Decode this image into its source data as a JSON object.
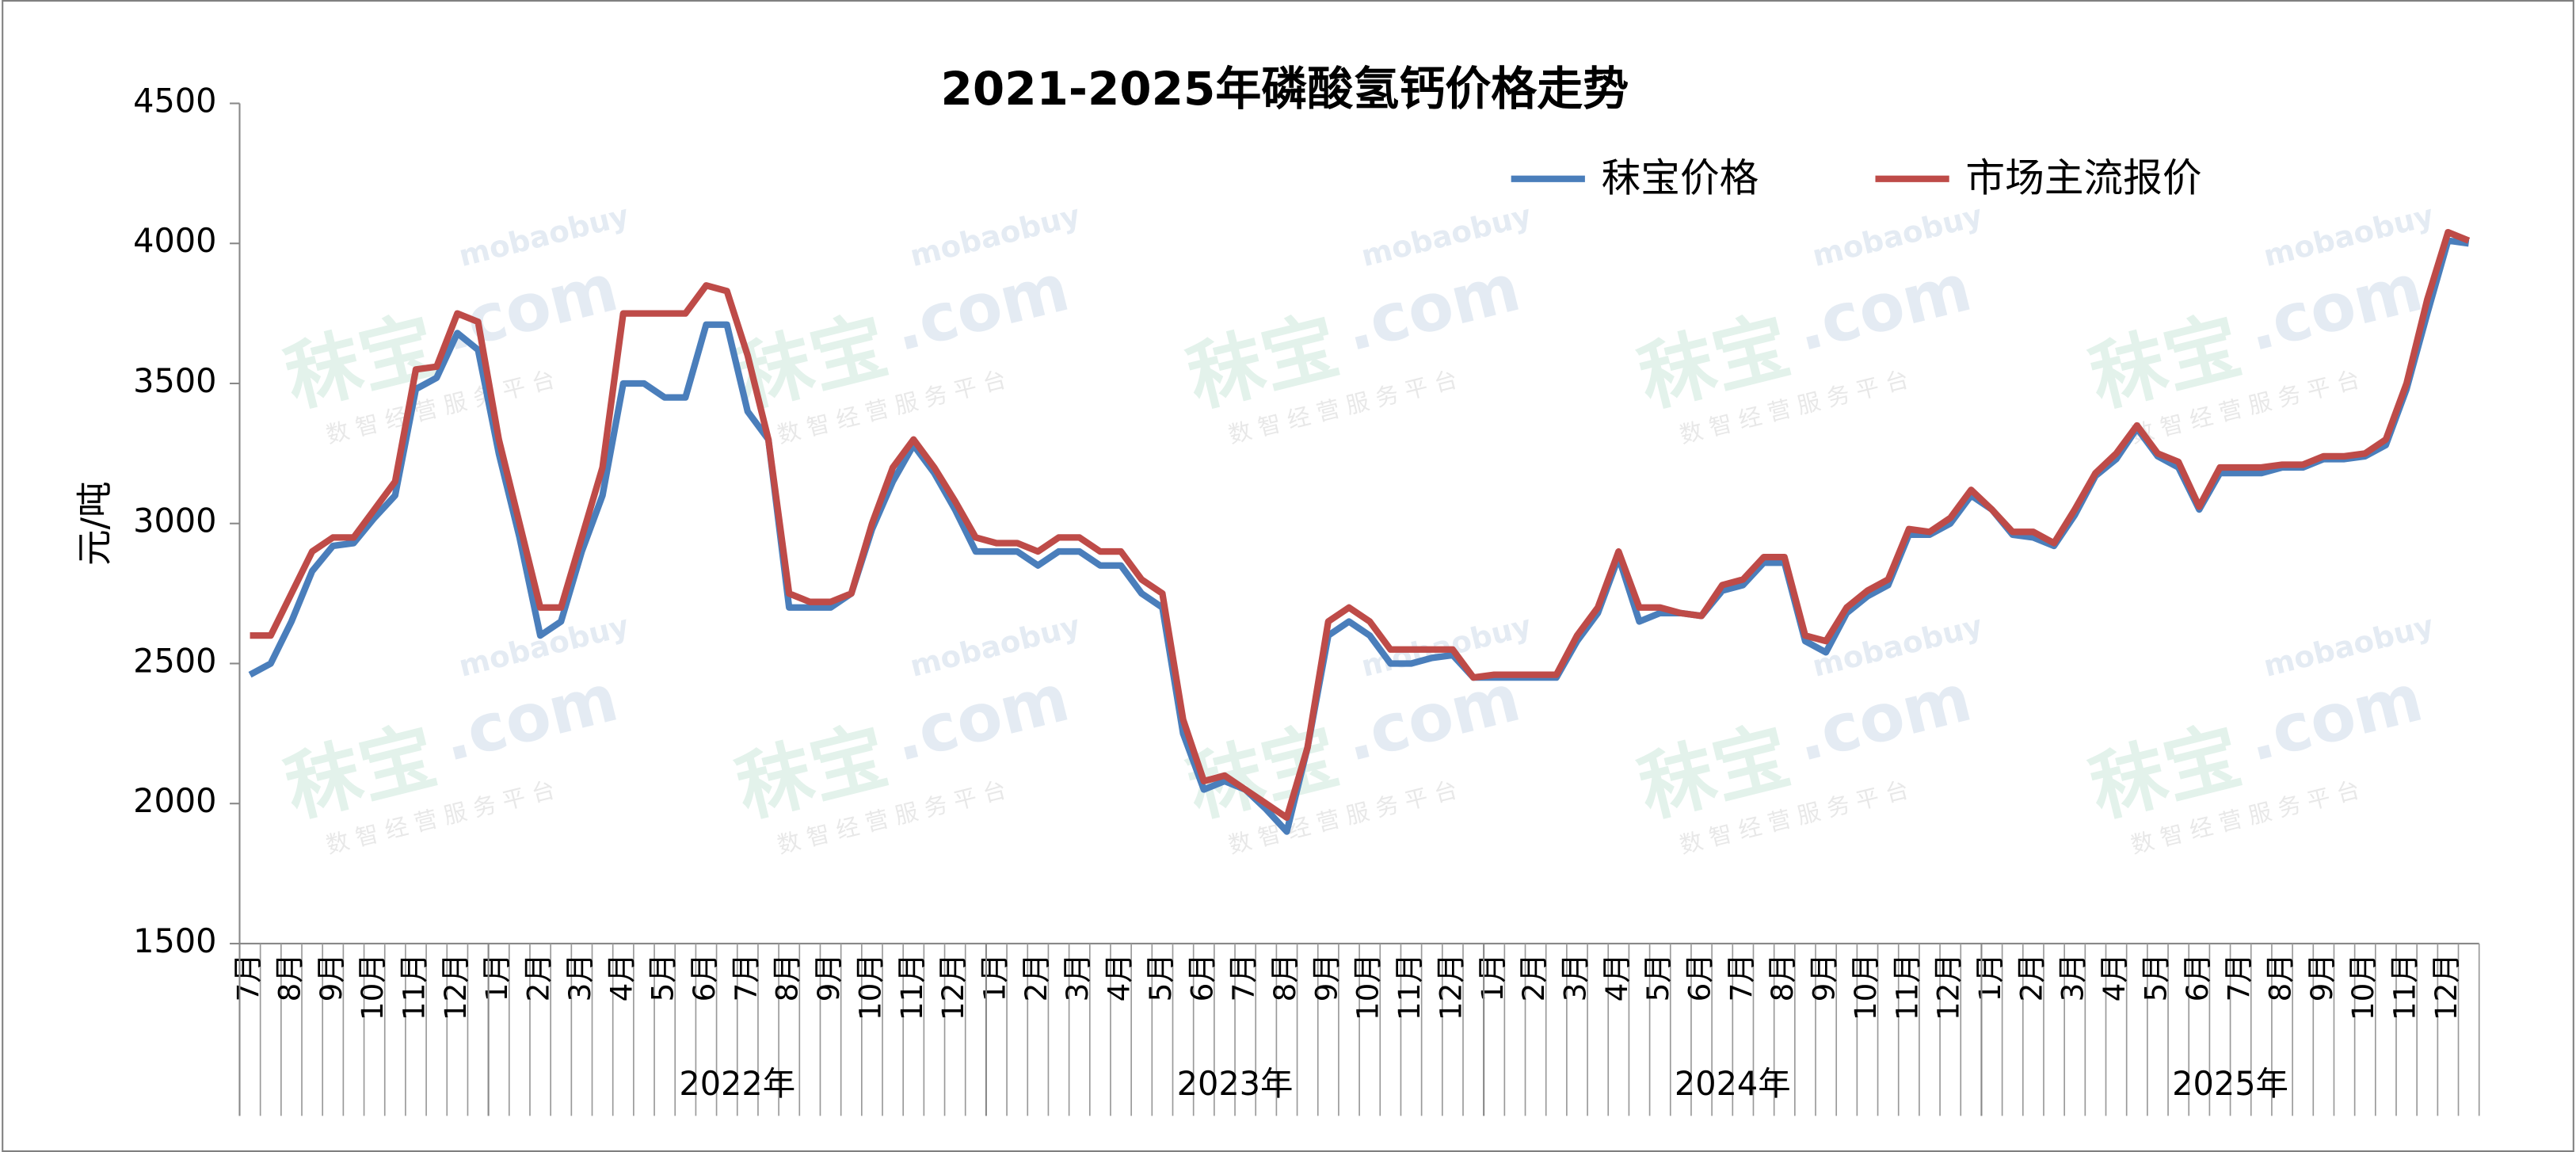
{
  "chart_data": {
    "type": "line",
    "title": "2021-2025年磷酸氢钙价格走势",
    "ylabel": "元/吨",
    "ylim": [
      1500,
      4500
    ],
    "yticks": [
      1500,
      2000,
      2500,
      3000,
      3500,
      4000,
      4500
    ],
    "grid": false,
    "legend": "top-right",
    "watermark": [
      "mobaobuy",
      "秣宝",
      ".com",
      "数 智 经 营 服 务 平 台"
    ],
    "years": [
      "2022年",
      "2023年",
      "2024年",
      "2025年"
    ],
    "categories": [
      "7月",
      null,
      "8月",
      null,
      "9月",
      null,
      "10月",
      null,
      "11月",
      null,
      "12月",
      null,
      "1月",
      null,
      "2月",
      null,
      "3月",
      null,
      "4月",
      null,
      "5月",
      null,
      "6月",
      null,
      "7月",
      null,
      "8月",
      null,
      "9月",
      null,
      "10月",
      null,
      "11月",
      null,
      "12月",
      null,
      "1月",
      null,
      "2月",
      null,
      "3月",
      null,
      "4月",
      null,
      "5月",
      null,
      "6月",
      null,
      "7月",
      null,
      "8月",
      null,
      "9月",
      null,
      "10月",
      null,
      "11月",
      null,
      "12月",
      null,
      "1月",
      null,
      "2月",
      null,
      "3月",
      null,
      "4月",
      null,
      "5月",
      null,
      "6月",
      null,
      "7月",
      null,
      "8月",
      null,
      "9月",
      null,
      "10月",
      null,
      "11月",
      null,
      "12月",
      null,
      "1月",
      null,
      "2月",
      null,
      "3月",
      null,
      "4月",
      null,
      "5月",
      null,
      "6月",
      null,
      "7月",
      null,
      "8月",
      null,
      "9月",
      null,
      "10月",
      null,
      "11月",
      null,
      "12月",
      null
    ],
    "series": [
      {
        "name": "秣宝价格",
        "color": "#4a7ebb",
        "values": [
          2460,
          2500,
          2650,
          2830,
          2920,
          2930,
          3020,
          3100,
          3480,
          3520,
          3680,
          3620,
          3250,
          2950,
          2600,
          2650,
          2900,
          3100,
          3500,
          3500,
          3450,
          3450,
          3710,
          3710,
          3400,
          3300,
          2700,
          2700,
          2700,
          2750,
          2980,
          3150,
          3280,
          3180,
          3050,
          2900,
          2900,
          2900,
          2850,
          2900,
          2900,
          2850,
          2850,
          2750,
          2700,
          2250,
          2050,
          2080,
          2050,
          1980,
          1900,
          2200,
          2600,
          2650,
          2600,
          2500,
          2500,
          2520,
          2530,
          2450,
          2450,
          2450,
          2450,
          2450,
          2580,
          2680,
          2880,
          2650,
          2680,
          2680,
          2670,
          2760,
          2780,
          2860,
          2860,
          2580,
          2540,
          2680,
          2740,
          2780,
          2960,
          2960,
          3000,
          3100,
          3050,
          2960,
          2950,
          2920,
          3030,
          3170,
          3230,
          3340,
          3240,
          3200,
          3050,
          3180,
          3180,
          3180,
          3200,
          3200,
          3230,
          3230,
          3240,
          3280,
          3480,
          3750,
          4010,
          4000
        ]
      },
      {
        "name": "市场主流报价",
        "color": "#be4b48",
        "values": [
          2600,
          2600,
          2750,
          2900,
          2950,
          2950,
          3050,
          3150,
          3550,
          3560,
          3750,
          3720,
          3300,
          3000,
          2700,
          2700,
          2950,
          3200,
          3750,
          3750,
          3750,
          3750,
          3850,
          3830,
          3600,
          3300,
          2750,
          2720,
          2720,
          2750,
          3000,
          3200,
          3300,
          3200,
          3080,
          2950,
          2930,
          2930,
          2900,
          2950,
          2950,
          2900,
          2900,
          2800,
          2750,
          2300,
          2080,
          2100,
          2050,
          2000,
          1950,
          2200,
          2650,
          2700,
          2650,
          2550,
          2550,
          2550,
          2550,
          2450,
          2460,
          2460,
          2460,
          2460,
          2600,
          2700,
          2900,
          2700,
          2700,
          2680,
          2670,
          2780,
          2800,
          2880,
          2880,
          2600,
          2580,
          2700,
          2760,
          2800,
          2980,
          2970,
          3020,
          3120,
          3050,
          2970,
          2970,
          2930,
          3050,
          3180,
          3250,
          3350,
          3250,
          3220,
          3060,
          3200,
          3200,
          3200,
          3210,
          3210,
          3240,
          3240,
          3250,
          3300,
          3500,
          3800,
          4040,
          4010
        ]
      }
    ]
  }
}
